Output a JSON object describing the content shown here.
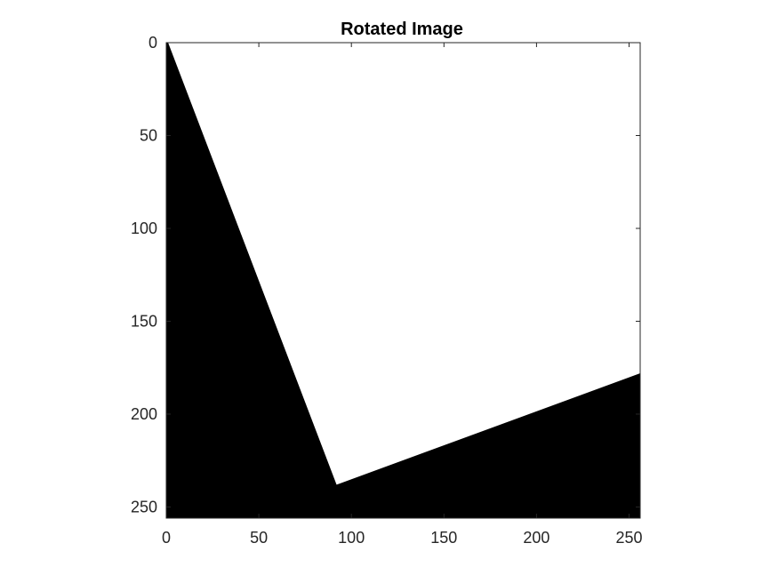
{
  "chart_data": {
    "type": "heatmap",
    "title": "Rotated Image",
    "xlabel": "",
    "ylabel": "",
    "xlim": [
      0,
      256
    ],
    "ylim": [
      0,
      256
    ],
    "y_axis_direction": "reversed",
    "x_ticks": [
      "0",
      "50",
      "100",
      "150",
      "200",
      "250"
    ],
    "y_ticks": [
      "0",
      "50",
      "100",
      "150",
      "200",
      "250"
    ],
    "x_tick_values": [
      0,
      50,
      100,
      150,
      200,
      250
    ],
    "y_tick_values": [
      0,
      50,
      100,
      150,
      200,
      250
    ],
    "grid": false,
    "colormap": "gray",
    "background_value": 0,
    "foreground_value": 1,
    "colors": {
      "background": "#000000",
      "foreground": "#ffffff"
    },
    "white_region_vertices": [
      {
        "x": 1,
        "y": 0
      },
      {
        "x": 256,
        "y": 0
      },
      {
        "x": 256,
        "y": 178
      },
      {
        "x": 92,
        "y": 238
      }
    ]
  }
}
